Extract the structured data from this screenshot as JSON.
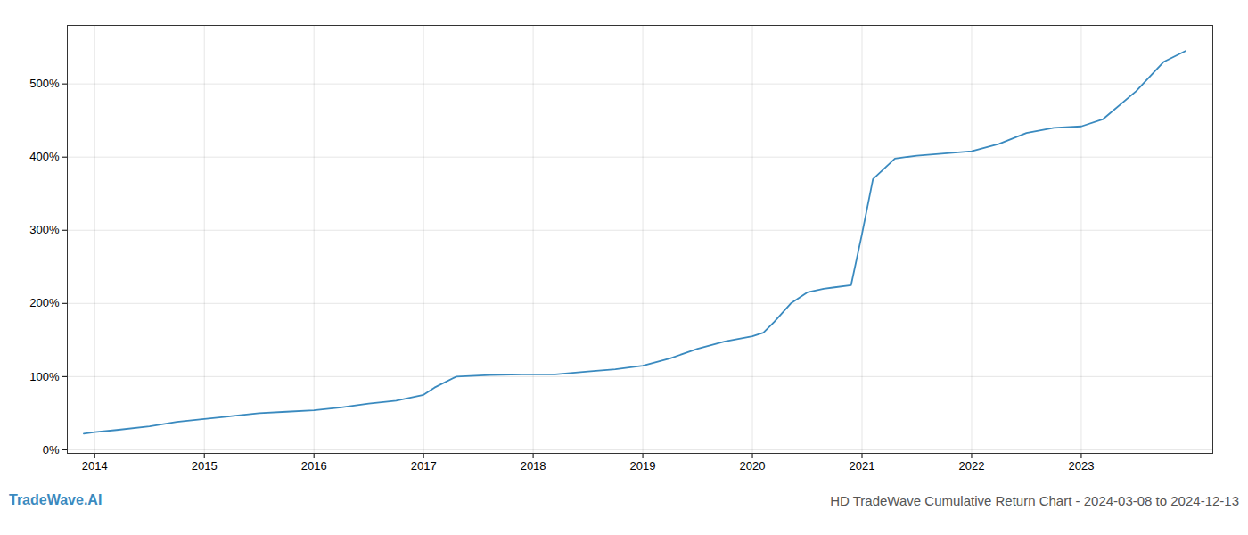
{
  "chart_data": {
    "type": "line",
    "title": "HD TradeWave Cumulative Return Chart - 2024-03-08 to 2024-12-13",
    "annotations": [
      "TradeWave.AI"
    ],
    "color": "#3a8abf",
    "x": [
      2013.9,
      2014.0,
      2014.2,
      2014.5,
      2014.75,
      2015.0,
      2015.25,
      2015.5,
      2015.75,
      2016.0,
      2016.25,
      2016.5,
      2016.75,
      2017.0,
      2017.1,
      2017.3,
      2017.6,
      2017.9,
      2018.0,
      2018.2,
      2018.5,
      2018.75,
      2019.0,
      2019.25,
      2019.5,
      2019.75,
      2020.0,
      2020.1,
      2020.2,
      2020.35,
      2020.5,
      2020.65,
      2020.75,
      2020.9,
      2021.0,
      2021.1,
      2021.3,
      2021.5,
      2021.75,
      2022.0,
      2022.25,
      2022.5,
      2022.75,
      2023.0,
      2023.2,
      2023.5,
      2023.75,
      2023.95
    ],
    "values": [
      22,
      24,
      27,
      32,
      38,
      42,
      46,
      50,
      52,
      54,
      58,
      63,
      67,
      75,
      85,
      100,
      102,
      103,
      103,
      103,
      107,
      110,
      115,
      125,
      138,
      148,
      155,
      160,
      175,
      200,
      215,
      220,
      222,
      225,
      295,
      370,
      398,
      402,
      405,
      408,
      418,
      433,
      440,
      442,
      452,
      490,
      530,
      545
    ],
    "xlim": [
      2013.75,
      2024.2
    ],
    "xticks": [
      2014,
      2015,
      2016,
      2017,
      2018,
      2019,
      2020,
      2021,
      2022,
      2023
    ],
    "ylim": [
      -5,
      580
    ],
    "yticks": [
      {
        "value": 0,
        "label": "0%"
      },
      {
        "value": 100,
        "label": "100%"
      },
      {
        "value": 200,
        "label": "200%"
      },
      {
        "value": 300,
        "label": "300%"
      },
      {
        "value": 400,
        "label": "400%"
      },
      {
        "value": 500,
        "label": "500%"
      }
    ],
    "grid": true
  }
}
